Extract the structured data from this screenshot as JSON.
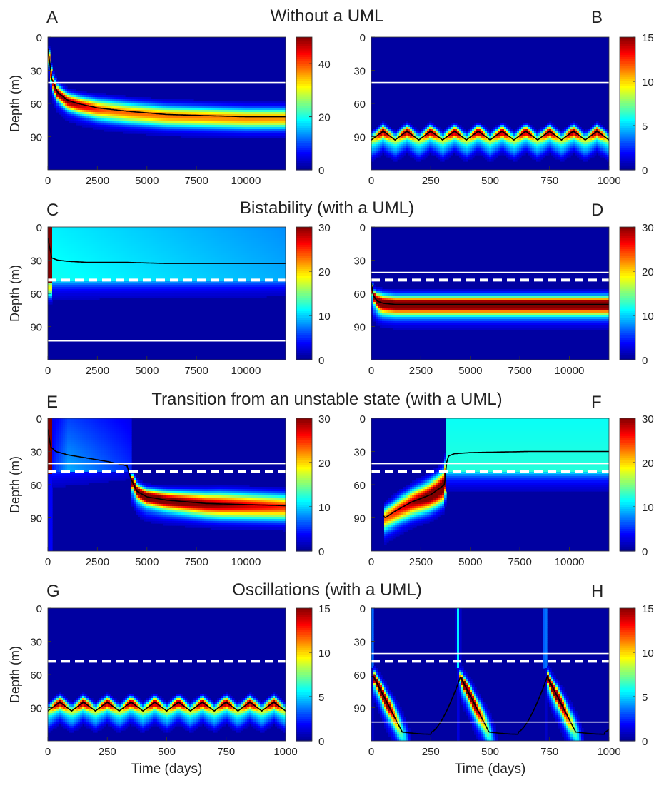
{
  "figure": {
    "rows": [
      {
        "title": "Without a UML"
      },
      {
        "title": "Bistability (with a UML)"
      },
      {
        "title": "Transition from an unstable state (with a UML)"
      },
      {
        "title": "Oscillations (with a UML)"
      }
    ],
    "ylabel": "Depth (m)",
    "xlabel": "Time (days)",
    "colormap": [
      "#00008f",
      "#0000ff",
      "#00ffff",
      "#ffff00",
      "#ff0000",
      "#800000"
    ]
  },
  "chart_data": [
    {
      "panel": "A",
      "type": "heatmap",
      "row_title": "Without a UML",
      "ylabel": "Depth (m)",
      "xlabel": "",
      "xlim": [
        0,
        12000
      ],
      "xticks": [
        0,
        2500,
        5000,
        7500,
        10000
      ],
      "ylim": [
        0,
        120
      ],
      "yticks": [
        0,
        30,
        60,
        90
      ],
      "colorbar": {
        "max": 50,
        "ticks": [
          0,
          20,
          40
        ]
      },
      "solid_lines": [
        41
      ],
      "dashed_lines": [],
      "peak_curve": {
        "x": [
          0,
          200,
          500,
          1000,
          1500,
          2500,
          4000,
          6000,
          8000,
          10000,
          12000
        ],
        "depth": [
          10,
          38,
          50,
          57,
          60,
          64,
          67,
          70,
          71,
          72,
          72
        ]
      },
      "field": "thin band following peak"
    },
    {
      "panel": "B",
      "type": "heatmap",
      "row_title": "Without a UML",
      "ylabel": "",
      "xlabel": "",
      "xlim": [
        0,
        1000
      ],
      "xticks": [
        0,
        250,
        500,
        750,
        1000
      ],
      "ylim": [
        0,
        120
      ],
      "yticks": [
        0,
        30,
        60,
        90
      ],
      "colorbar": {
        "max": 15,
        "ticks": [
          0,
          5,
          10,
          15
        ]
      },
      "solid_lines": [
        41
      ],
      "dashed_lines": [],
      "oscillation": {
        "period_days": 100,
        "mean_depth": 89,
        "amplitude_m": 5
      },
      "field": "oscillating band"
    },
    {
      "panel": "C",
      "type": "heatmap",
      "row_title": "Bistability (with a UML)",
      "ylabel": "Depth (m)",
      "xlabel": "",
      "xlim": [
        0,
        12000
      ],
      "xticks": [
        0,
        2500,
        5000,
        7500,
        10000
      ],
      "ylim": [
        0,
        120
      ],
      "yticks": [
        0,
        30,
        60,
        90
      ],
      "colorbar": {
        "max": 30,
        "ticks": [
          0,
          10,
          20,
          30
        ]
      },
      "solid_lines": [
        103
      ],
      "dashed_lines": [
        48
      ],
      "peak_curve": {
        "x": [
          0,
          200,
          500,
          1000,
          2000,
          4000,
          6000,
          8000,
          10000,
          12000
        ],
        "depth": [
          10,
          28,
          30,
          31,
          32,
          32,
          33,
          33,
          33,
          33
        ]
      },
      "field": "surface mixed layer"
    },
    {
      "panel": "D",
      "type": "heatmap",
      "row_title": "Bistability (with a UML)",
      "ylabel": "",
      "xlabel": "",
      "xlim": [
        0,
        12000
      ],
      "xticks": [
        0,
        2500,
        5000,
        7500,
        10000
      ],
      "ylim": [
        0,
        120
      ],
      "yticks": [
        0,
        30,
        60,
        90
      ],
      "colorbar": {
        "max": 30,
        "ticks": [
          0,
          10,
          20,
          30
        ]
      },
      "solid_lines": [
        41
      ],
      "dashed_lines": [
        48
      ],
      "peak_curve": {
        "x": [
          0,
          100,
          300,
          600,
          1200,
          3000,
          6000,
          9000,
          12000
        ],
        "depth": [
          50,
          62,
          67,
          69,
          70,
          70,
          70,
          70,
          70
        ]
      },
      "field": "deep band"
    },
    {
      "panel": "E",
      "type": "heatmap",
      "row_title": "Transition from an unstable state (with a UML)",
      "ylabel": "Depth (m)",
      "xlabel": "",
      "xlim": [
        0,
        12000
      ],
      "xticks": [
        0,
        2500,
        5000,
        7500,
        10000
      ],
      "ylim": [
        0,
        120
      ],
      "yticks": [
        0,
        30,
        60,
        90
      ],
      "colorbar": {
        "max": 30,
        "ticks": [
          0,
          10,
          20,
          30
        ]
      },
      "solid_lines": [
        41
      ],
      "dashed_lines": [
        48
      ],
      "peak_curve": {
        "x": [
          0,
          150,
          400,
          1000,
          2000,
          3000,
          4000,
          4200,
          4500,
          5000,
          6000,
          8000,
          10000,
          12000
        ],
        "depth": [
          10,
          26,
          30,
          33,
          36,
          39,
          43,
          55,
          66,
          71,
          74,
          77,
          78,
          79
        ]
      },
      "switch_day": 4200,
      "field": "transition: surface to deep"
    },
    {
      "panel": "F",
      "type": "heatmap",
      "row_title": "Transition from an unstable state (with a UML)",
      "ylabel": "",
      "xlabel": "",
      "xlim": [
        0,
        12000
      ],
      "xticks": [
        0,
        2500,
        5000,
        7500,
        10000
      ],
      "ylim": [
        0,
        120
      ],
      "yticks": [
        0,
        30,
        60,
        90
      ],
      "colorbar": {
        "max": 30,
        "ticks": [
          0,
          10,
          20,
          30
        ]
      },
      "solid_lines": [
        41
      ],
      "dashed_lines": [
        48
      ],
      "peak_curve": {
        "x": [
          600,
          700,
          1200,
          2000,
          3000,
          3700,
          3800,
          3900,
          4200,
          5000,
          8000,
          12000
        ],
        "depth": [
          88,
          90,
          84,
          76,
          69,
          60,
          40,
          34,
          32,
          31,
          30,
          30
        ]
      },
      "band_start_day": 600,
      "switch_day": 3800,
      "field": "transition: deep to surface"
    },
    {
      "panel": "G",
      "type": "heatmap",
      "row_title": "Oscillations (with a UML)",
      "ylabel": "Depth (m)",
      "xlabel": "Time (days)",
      "xlim": [
        0,
        1000
      ],
      "xticks": [
        0,
        250,
        500,
        750,
        1000
      ],
      "ylim": [
        0,
        120
      ],
      "yticks": [
        0,
        30,
        60,
        90
      ],
      "colorbar": {
        "max": 15,
        "ticks": [
          0,
          5,
          10,
          15
        ]
      },
      "solid_lines": [],
      "dashed_lines": [
        48
      ],
      "oscillation": {
        "period_days": 100,
        "mean_depth": 89,
        "amplitude_m": 5
      },
      "field": "oscillating band"
    },
    {
      "panel": "H",
      "type": "heatmap",
      "row_title": "Oscillations (with a UML)",
      "ylabel": "",
      "xlabel": "Time (days)",
      "xlim": [
        0,
        1000
      ],
      "xticks": [
        0,
        250,
        500,
        750,
        1000
      ],
      "ylim": [
        0,
        120
      ],
      "yticks": [
        0,
        30,
        60,
        90
      ],
      "colorbar": {
        "max": 15,
        "ticks": [
          0,
          5,
          10,
          15
        ]
      },
      "solid_lines": [
        41,
        103
      ],
      "dashed_lines": [
        48
      ],
      "relaxation": {
        "period_days": 365,
        "first_peak_day": 10,
        "peak_depth_start": 62,
        "peak_depth_end": 112,
        "fall_days": 120
      },
      "field": "relaxation oscillations"
    }
  ]
}
